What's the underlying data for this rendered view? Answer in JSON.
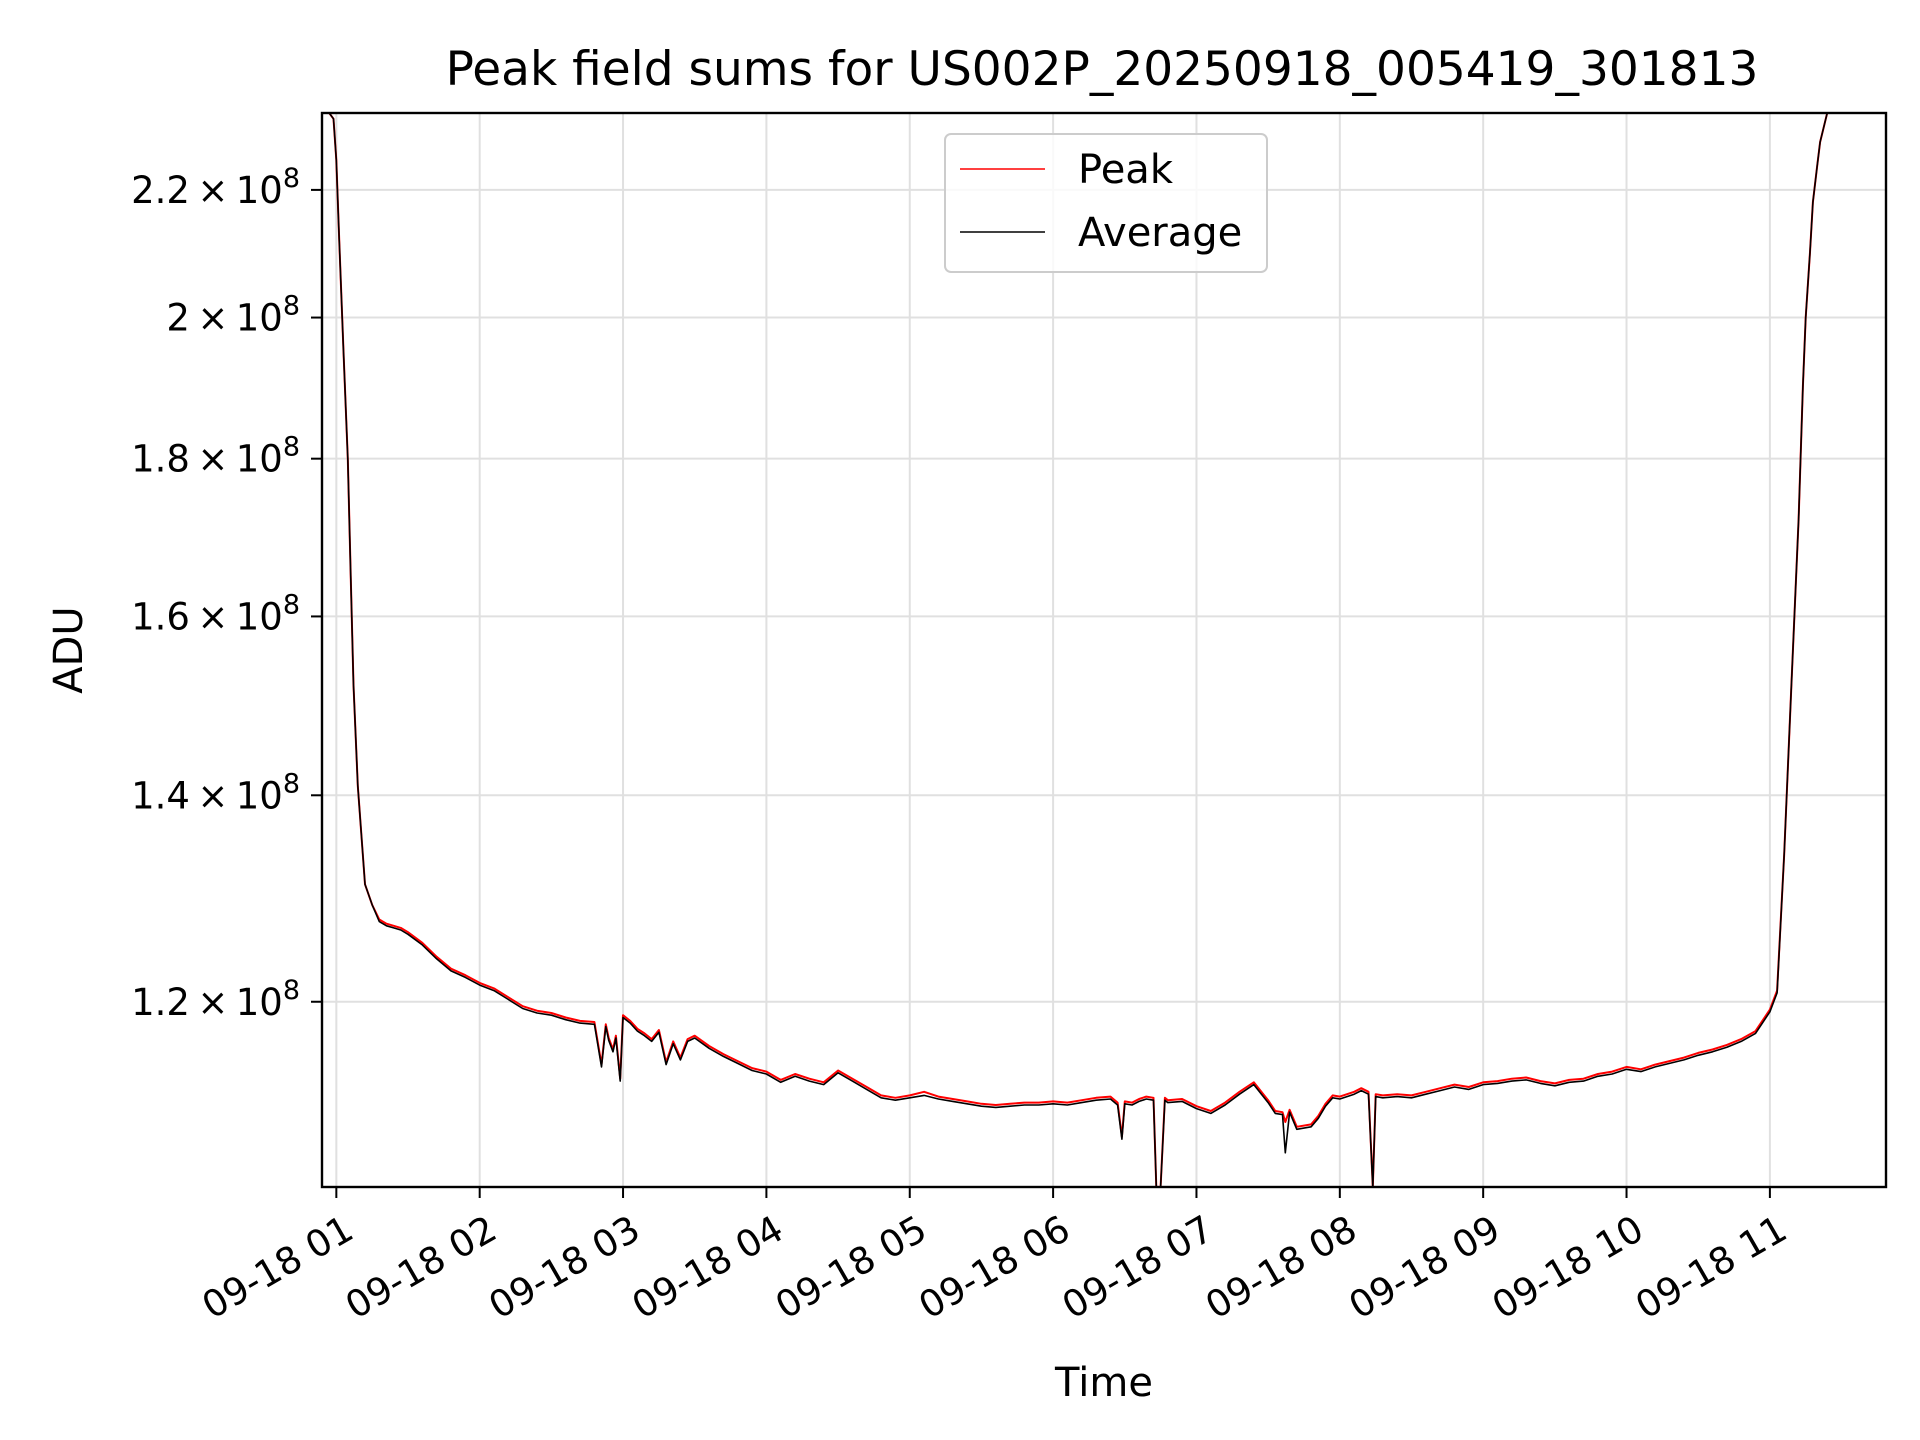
{
  "chart_data": {
    "type": "line",
    "title": "Peak field sums for US002P_20250918_005419_301813",
    "xlabel": "Time",
    "ylabel": "ADU",
    "yscale": "log",
    "ylim": [
      104500000,
      233000000
    ],
    "xlim": [
      0.9,
      11.81
    ],
    "grid": true,
    "legend_position": "top-center",
    "x_ticks": [
      {
        "value": 1,
        "label": "09-18 01"
      },
      {
        "value": 2,
        "label": "09-18 02"
      },
      {
        "value": 3,
        "label": "09-18 03"
      },
      {
        "value": 4,
        "label": "09-18 04"
      },
      {
        "value": 5,
        "label": "09-18 05"
      },
      {
        "value": 6,
        "label": "09-18 06"
      },
      {
        "value": 7,
        "label": "09-18 07"
      },
      {
        "value": 8,
        "label": "09-18 08"
      },
      {
        "value": 9,
        "label": "09-18 09"
      },
      {
        "value": 10,
        "label": "09-18 10"
      },
      {
        "value": 11,
        "label": "09-18 11"
      }
    ],
    "y_ticks": [
      {
        "value": 120000000,
        "mant": "1.2",
        "exp": "8"
      },
      {
        "value": 140000000,
        "mant": "1.4",
        "exp": "8"
      },
      {
        "value": 160000000,
        "mant": "1.6",
        "exp": "8"
      },
      {
        "value": 180000000,
        "mant": "1.8",
        "exp": "8"
      },
      {
        "value": 200000000,
        "mant": "2",
        "exp": "8"
      },
      {
        "value": 220000000,
        "mant": "2.2",
        "exp": "8"
      }
    ],
    "x_hours": [
      0.91,
      0.95,
      0.98,
      1.0,
      1.02,
      1.05,
      1.08,
      1.1,
      1.12,
      1.15,
      1.2,
      1.25,
      1.3,
      1.35,
      1.4,
      1.45,
      1.5,
      1.6,
      1.7,
      1.8,
      1.9,
      2.0,
      2.1,
      2.2,
      2.3,
      2.4,
      2.5,
      2.6,
      2.7,
      2.8,
      2.85,
      2.88,
      2.9,
      2.93,
      2.95,
      2.98,
      3.0,
      3.05,
      3.1,
      3.15,
      3.2,
      3.25,
      3.3,
      3.35,
      3.4,
      3.45,
      3.5,
      3.6,
      3.7,
      3.8,
      3.9,
      4.0,
      4.1,
      4.2,
      4.3,
      4.4,
      4.5,
      4.6,
      4.7,
      4.8,
      4.9,
      5.0,
      5.1,
      5.2,
      5.3,
      5.4,
      5.5,
      5.6,
      5.7,
      5.8,
      5.9,
      6.0,
      6.1,
      6.2,
      6.3,
      6.4,
      6.45,
      6.48,
      6.5,
      6.55,
      6.6,
      6.65,
      6.7,
      6.72,
      6.75,
      6.78,
      6.8,
      6.9,
      7.0,
      7.1,
      7.2,
      7.3,
      7.4,
      7.5,
      7.55,
      7.6,
      7.62,
      7.65,
      7.7,
      7.8,
      7.85,
      7.9,
      7.95,
      8.0,
      8.1,
      8.15,
      8.2,
      8.23,
      8.25,
      8.3,
      8.4,
      8.5,
      8.6,
      8.7,
      8.8,
      8.9,
      9.0,
      9.1,
      9.2,
      9.3,
      9.4,
      9.5,
      9.6,
      9.7,
      9.8,
      9.9,
      10.0,
      10.1,
      10.2,
      10.3,
      10.4,
      10.5,
      10.6,
      10.7,
      10.8,
      10.9,
      11.0,
      11.05,
      11.1,
      11.15,
      11.2,
      11.23,
      11.25,
      11.28,
      11.3,
      11.33,
      11.35,
      11.38,
      11.4,
      11.43,
      11.45,
      11.48,
      11.5,
      11.53,
      11.55,
      11.58,
      11.6,
      11.65,
      11.8
    ],
    "series": [
      {
        "name": "Peak",
        "color": "#ff0000",
        "values": [
          233000000,
          233000000,
          232000000,
          225000000,
          212000000,
          195000000,
          180000000,
          165000000,
          152000000,
          141000000,
          131000000,
          129000000,
          127600000,
          127200000,
          127000000,
          126800000,
          126400000,
          125400000,
          124100000,
          123000000,
          122400000,
          121700000,
          121200000,
          120400000,
          119600000,
          119200000,
          119000000,
          118600000,
          118300000,
          118200000,
          114500000,
          118000000,
          116800000,
          115800000,
          117000000,
          113300000,
          118800000,
          118300000,
          117600000,
          117200000,
          116700000,
          117500000,
          114700000,
          116500000,
          115100000,
          116700000,
          117000000,
          116100000,
          115400000,
          114800000,
          114200000,
          113900000,
          113200000,
          113700000,
          113300000,
          113000000,
          114000000,
          113300000,
          112600000,
          111900000,
          111700000,
          111900000,
          112200000,
          111800000,
          111600000,
          111400000,
          111200000,
          111100000,
          111200000,
          111300000,
          111300000,
          111400000,
          111300000,
          111500000,
          111700000,
          111800000,
          111300000,
          108500000,
          111400000,
          111300000,
          111600000,
          111800000,
          111700000,
          104500000,
          104500000,
          111700000,
          111500000,
          111600000,
          111000000,
          110600000,
          111300000,
          112200000,
          113000000,
          111500000,
          110600000,
          110500000,
          109700000,
          110700000,
          109300000,
          109500000,
          110200000,
          111200000,
          111900000,
          111800000,
          112200000,
          112500000,
          112200000,
          104500000,
          112000000,
          111900000,
          112000000,
          111900000,
          112200000,
          112500000,
          112800000,
          112600000,
          113000000,
          113100000,
          113300000,
          113400000,
          113100000,
          112900000,
          113200000,
          113300000,
          113700000,
          113900000,
          114300000,
          114100000,
          114500000,
          114800000,
          115100000,
          115500000,
          115800000,
          116200000,
          116700000,
          117400000,
          119300000,
          121000000,
          134000000,
          152000000,
          172000000,
          190000000,
          200000000,
          210000000,
          218000000,
          224000000,
          228000000,
          231000000,
          233000000,
          233000000,
          233000000,
          233000000,
          233000000,
          233000000,
          233000000,
          233000000,
          233000000
        ]
      },
      {
        "name": "Average",
        "color": "#000000",
        "values": [
          233000000,
          233000000,
          232000000,
          225000000,
          212000000,
          195000000,
          180000000,
          165000000,
          152000000,
          141000000,
          131000000,
          129000000,
          127400000,
          127000000,
          126800000,
          126600000,
          126200000,
          125200000,
          123900000,
          122800000,
          122200000,
          121500000,
          121000000,
          120200000,
          119400000,
          119000000,
          118800000,
          118400000,
          118100000,
          118000000,
          114300000,
          117800000,
          116600000,
          115600000,
          116800000,
          113100000,
          118600000,
          118100000,
          117400000,
          117000000,
          116500000,
          117300000,
          114500000,
          116300000,
          114900000,
          116500000,
          116800000,
          115900000,
          115200000,
          114600000,
          114000000,
          113700000,
          113000000,
          113500000,
          113100000,
          112800000,
          113800000,
          113100000,
          112400000,
          111700000,
          111500000,
          111700000,
          111900000,
          111600000,
          111400000,
          111200000,
          111000000,
          110900000,
          111000000,
          111100000,
          111100000,
          111200000,
          111100000,
          111300000,
          111500000,
          111600000,
          111100000,
          108300000,
          111200000,
          111100000,
          111400000,
          111600000,
          111500000,
          104500000,
          104500000,
          111500000,
          111300000,
          111400000,
          110800000,
          110400000,
          111100000,
          112000000,
          112800000,
          111300000,
          110400000,
          110300000,
          107200000,
          110500000,
          109100000,
          109300000,
          110000000,
          111000000,
          111700000,
          111600000,
          112000000,
          112300000,
          112000000,
          104500000,
          111800000,
          111700000,
          111800000,
          111700000,
          112000000,
          112300000,
          112600000,
          112400000,
          112800000,
          112900000,
          113100000,
          113200000,
          112900000,
          112700000,
          113000000,
          113100000,
          113500000,
          113700000,
          114100000,
          113900000,
          114300000,
          114600000,
          114900000,
          115300000,
          115600000,
          116000000,
          116500000,
          117200000,
          119100000,
          120800000,
          134000000,
          152000000,
          172000000,
          190000000,
          200000000,
          210000000,
          218000000,
          224000000,
          228000000,
          231000000,
          233000000,
          233000000,
          233000000,
          233000000,
          233000000,
          233000000,
          233000000,
          233000000,
          233000000
        ]
      }
    ]
  }
}
